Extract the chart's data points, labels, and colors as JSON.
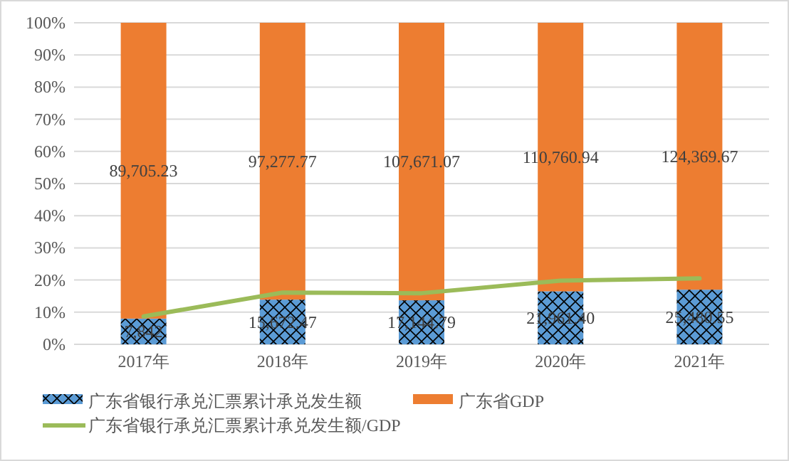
{
  "chart_data": {
    "type": "bar",
    "stacked": true,
    "categories": [
      "2017年",
      "2018年",
      "2019年",
      "2020年",
      "2021年"
    ],
    "ylim": [
      0,
      100
    ],
    "yticks": [
      {
        "value": 0,
        "label": "0%"
      },
      {
        "value": 10,
        "label": "10%"
      },
      {
        "value": 20,
        "label": "20%"
      },
      {
        "value": 30,
        "label": "30%"
      },
      {
        "value": 40,
        "label": "40%"
      },
      {
        "value": 50,
        "label": "50%"
      },
      {
        "value": 60,
        "label": "60%"
      },
      {
        "value": 70,
        "label": "70%"
      },
      {
        "value": 80,
        "label": "80%"
      },
      {
        "value": 90,
        "label": "90%"
      },
      {
        "value": 100,
        "label": "100%"
      }
    ],
    "grid": "y",
    "legend": "bottom",
    "annotations": [
      "7,842",
      "15,672.47",
      "17,144.79",
      "21,961.40",
      "25,480.55",
      "89,705.23",
      "97,277.77",
      "107,671.07",
      "110,760.94",
      "124,369.67"
    ],
    "series": [
      {
        "name": "广东省银行承兑汇票累计承兑发生额",
        "color": "#5b9bd5",
        "values": [
          8.0,
          13.9,
          13.7,
          16.5,
          17.0
        ]
      },
      {
        "name": "广东省GDP",
        "color": "#ed7d31",
        "values": [
          92.0,
          86.1,
          86.3,
          83.5,
          83.0
        ]
      },
      {
        "name": "广东省银行承兑汇票累计承兑发生额/GDP",
        "type": "line",
        "color": "#9bbb59",
        "values": [
          8.7,
          16.1,
          15.9,
          19.8,
          20.5
        ]
      }
    ]
  }
}
